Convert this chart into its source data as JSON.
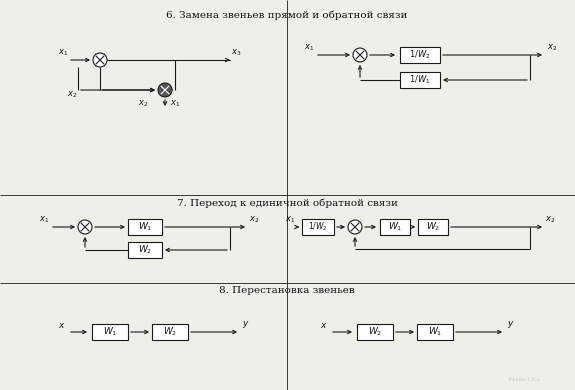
{
  "title6": "6. Замена звеньев прямой и обратной связи",
  "title7": "7. Переход к единичной обратной связи",
  "title8": "8. Перестановка звеньев",
  "bg_color": "#efefea",
  "line_color": "#1a1a1a",
  "box_color": "#ffffff",
  "text_color": "#111111",
  "divider_color": "#999999",
  "figsize": [
    5.75,
    3.9
  ],
  "dpi": 100
}
